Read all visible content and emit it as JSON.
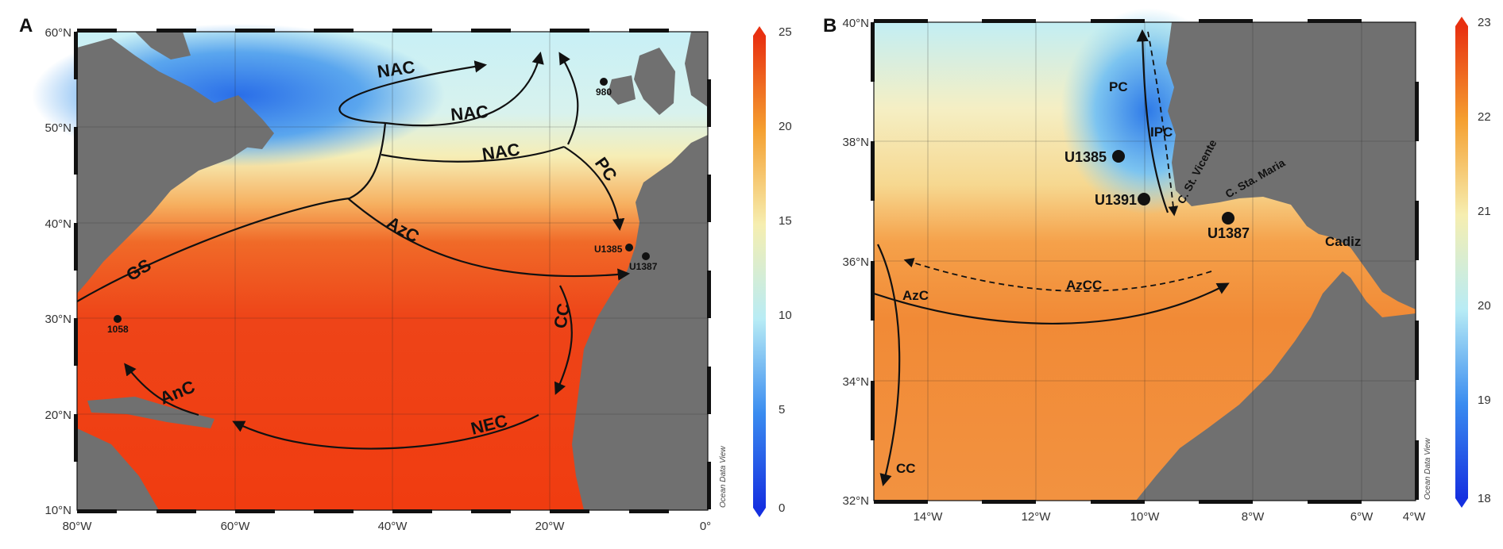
{
  "panelA": {
    "letter": "A",
    "lat_ticks": [
      "60°N",
      "50°N",
      "40°N",
      "30°N",
      "20°N",
      "10°N"
    ],
    "lon_ticks": [
      "80°W",
      "60°W",
      "40°W",
      "20°W",
      "0°"
    ],
    "colorbar": {
      "ticks": [
        "25",
        "20",
        "15",
        "10",
        "5",
        "0"
      ],
      "min": 0,
      "max": 25
    },
    "watermark": "Ocean Data View",
    "currents": [
      "NAC",
      "NAC",
      "NAC",
      "PC",
      "AzC",
      "GS",
      "CC",
      "AnC",
      "NEC"
    ],
    "sites": [
      "980",
      "U1385",
      "U1387",
      "1058"
    ]
  },
  "panelB": {
    "letter": "B",
    "lat_ticks": [
      "40°N",
      "38°N",
      "36°N",
      "34°N",
      "32°N"
    ],
    "lon_ticks": [
      "14°W",
      "12°W",
      "10°W",
      "8°W",
      "6°W",
      "4°W"
    ],
    "colorbar": {
      "ticks": [
        "23",
        "22",
        "21",
        "20",
        "19",
        "18"
      ],
      "min": 18,
      "max": 23
    },
    "watermark": "Ocean Data View",
    "currents": [
      "PC",
      "IPC",
      "AzCC",
      "AzC",
      "CC"
    ],
    "sites": [
      "U1385",
      "U1391",
      "U1387"
    ],
    "places": [
      "C. St. Vicente",
      "C. Sta. Maria",
      "Cadiz"
    ]
  },
  "colors": {
    "land": "#707070",
    "warm": "#f03a10",
    "mid": "#f7e8a8",
    "cold": "#2a6ee8"
  }
}
